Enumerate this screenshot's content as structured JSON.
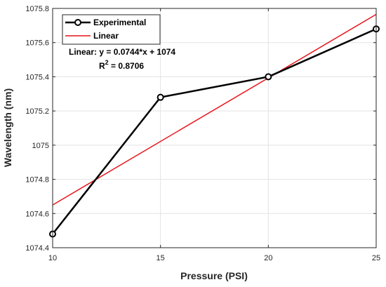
{
  "chart_data": {
    "type": "line",
    "xlabel": "Pressure (PSI)",
    "ylabel": "Wavelength (nm)",
    "xlim": [
      10,
      25
    ],
    "ylim": [
      1074.4,
      1075.8
    ],
    "xticks": [
      10,
      15,
      20,
      25
    ],
    "yticks": [
      1074.4,
      1074.6,
      1074.8,
      1075,
      1075.2,
      1075.4,
      1075.6,
      1075.8
    ],
    "grid": true,
    "legend_position": "top-left",
    "series": [
      {
        "name": "Experimental",
        "color": "#000000",
        "marker": "circle",
        "x": [
          10,
          15,
          20,
          25
        ],
        "y": [
          1074.48,
          1075.28,
          1075.4,
          1075.68
        ]
      },
      {
        "name": "Linear",
        "color": "#e8141b",
        "marker": "none",
        "x": [
          10,
          25
        ],
        "y": [
          1074.65,
          1075.765
        ]
      }
    ],
    "annotation": {
      "line1": "Linear:  y = 0.0744*x + 1074",
      "r2_prefix": "R",
      "r2_sup": "2",
      "r2_value": " = 0.8706"
    }
  }
}
